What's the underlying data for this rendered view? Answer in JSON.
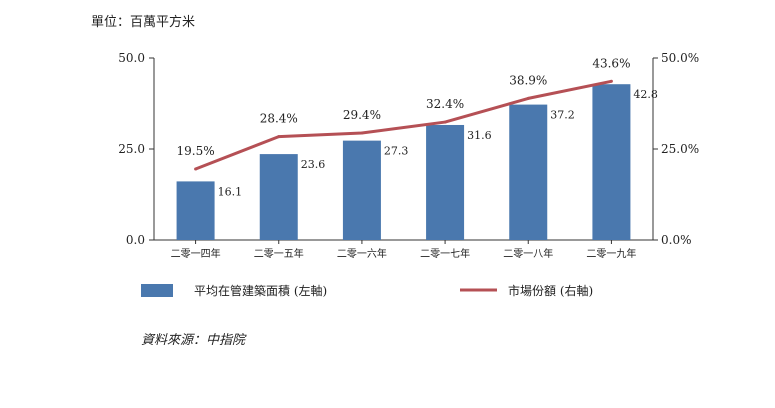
{
  "unit_label": "單位：百萬平方米",
  "source_label": "資料來源：中指院",
  "chart_data": {
    "type": "bar",
    "categories": [
      "二零一四年",
      "二零一五年",
      "二零一六年",
      "二零一七年",
      "二零一八年",
      "二零一九年"
    ],
    "series": [
      {
        "name": "平均在管建築面積 (左軸)",
        "type": "bar",
        "axis": "left",
        "values": [
          16.1,
          23.6,
          27.3,
          31.6,
          37.2,
          42.8
        ],
        "labels": [
          "16.1",
          "23.6",
          "27.3",
          "31.6",
          "37.2",
          "42.8"
        ],
        "color": "#4a78ae"
      },
      {
        "name": "市場份額 (右軸)",
        "type": "line",
        "axis": "right",
        "values": [
          19.5,
          28.4,
          29.4,
          32.4,
          38.9,
          43.6
        ],
        "labels": [
          "19.5%",
          "28.4%",
          "29.4%",
          "32.4%",
          "38.9%",
          "43.6%"
        ],
        "color": "#b55055"
      }
    ],
    "y_left": {
      "min": 0,
      "max": 50,
      "ticks": [
        "0.0",
        "25.0",
        "50.0"
      ]
    },
    "y_right": {
      "min": 0,
      "max": 50,
      "ticks": [
        "0.0%",
        "25.0%",
        "50.0%"
      ]
    },
    "grid": false,
    "legend_position": "bottom"
  }
}
